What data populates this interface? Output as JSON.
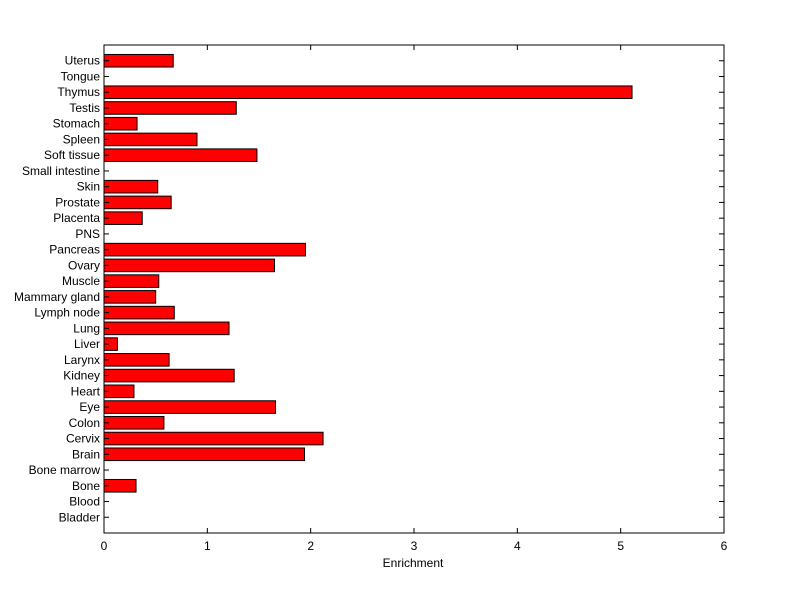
{
  "chart_data": {
    "type": "bar",
    "orientation": "horizontal",
    "xlabel": "Enrichment",
    "ylabel": "",
    "xlim": [
      0,
      6
    ],
    "xticks": [
      0,
      1,
      2,
      3,
      4,
      5,
      6
    ],
    "grid": false,
    "legend": "none",
    "bar_color": "#ff0000",
    "edge_color": "#000000",
    "categories": [
      "Bladder",
      "Blood",
      "Bone",
      "Bone marrow",
      "Brain",
      "Cervix",
      "Colon",
      "Eye",
      "Heart",
      "Kidney",
      "Larynx",
      "Liver",
      "Lung",
      "Lymph node",
      "Mammary gland",
      "Muscle",
      "Ovary",
      "Pancreas",
      "PNS",
      "Placenta",
      "Prostate",
      "Skin",
      "Small intestine",
      "Soft tissue",
      "Spleen",
      "Stomach",
      "Testis",
      "Thymus",
      "Tongue",
      "Uterus"
    ],
    "values": [
      0,
      0,
      0.31,
      0,
      1.94,
      2.12,
      0.58,
      1.66,
      0.29,
      1.26,
      0.63,
      0.13,
      1.21,
      0.68,
      0.5,
      0.53,
      1.65,
      1.95,
      0,
      0.37,
      0.65,
      0.52,
      0,
      1.48,
      0.9,
      0.32,
      1.28,
      5.11,
      0,
      0.67
    ]
  }
}
